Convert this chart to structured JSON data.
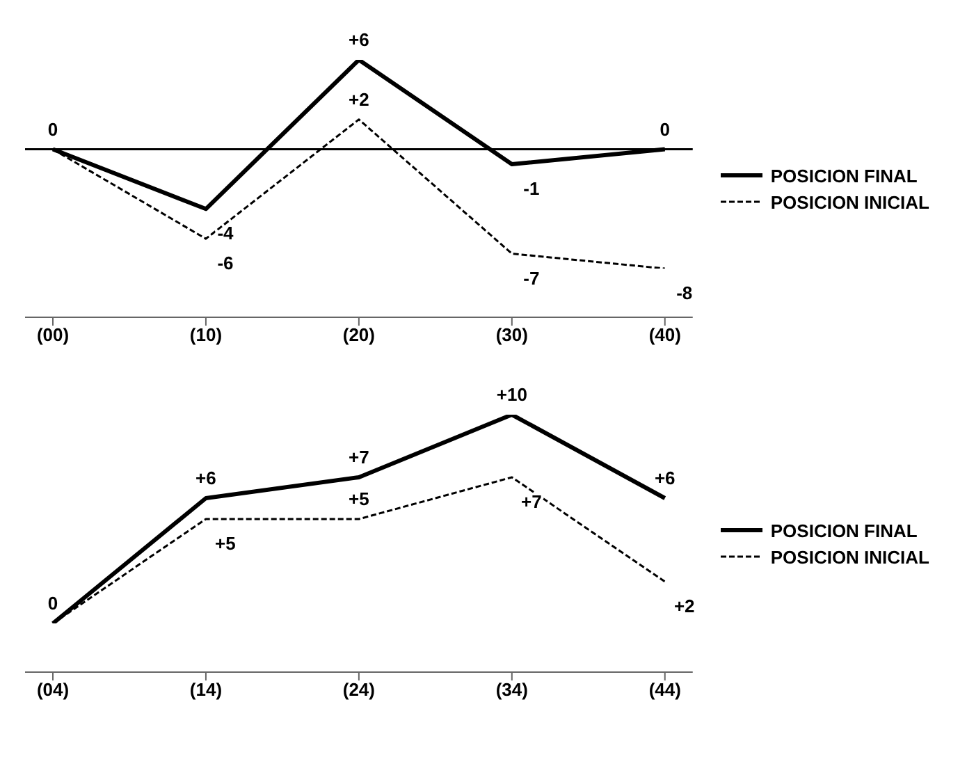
{
  "chart_data": [
    {
      "type": "line",
      "categories": [
        "(00)",
        "(10)",
        "(20)",
        "(30)",
        "(40)"
      ],
      "tick_labels": "x",
      "marker": "none",
      "legend": "right",
      "ref_lines": [
        {
          "axis": "y",
          "value": 0
        }
      ],
      "series": [
        {
          "name": "POSICION FINAL",
          "color": "#000000",
          "line_style": "solid",
          "values": [
            0,
            -4,
            6,
            -1,
            0
          ],
          "value_labels": [
            "0",
            "-4",
            "+6",
            "-1",
            "0"
          ]
        },
        {
          "name": "POSICION INICIAL",
          "color": "#000000",
          "line_style": "dashed",
          "values": [
            0,
            -6,
            2,
            -7,
            -8
          ],
          "value_labels": [
            null,
            "-6",
            "+2",
            "-7",
            "-8"
          ]
        }
      ]
    },
    {
      "type": "line",
      "categories": [
        "(04)",
        "(14)",
        "(24)",
        "(34)",
        "(44)"
      ],
      "tick_labels": "x",
      "marker": "none",
      "legend": "right",
      "series": [
        {
          "name": "POSICION FINAL",
          "color": "#000000",
          "line_style": "solid",
          "values": [
            0,
            6,
            7,
            10,
            6
          ],
          "value_labels": [
            "0",
            "+6",
            "+7",
            "+10",
            "+6"
          ]
        },
        {
          "name": "POSICION INICIAL",
          "color": "#000000",
          "line_style": "dashed",
          "values": [
            0,
            5,
            5,
            7,
            2
          ],
          "value_labels": [
            null,
            "+5",
            "+5",
            "+7",
            "+2"
          ]
        }
      ]
    }
  ]
}
